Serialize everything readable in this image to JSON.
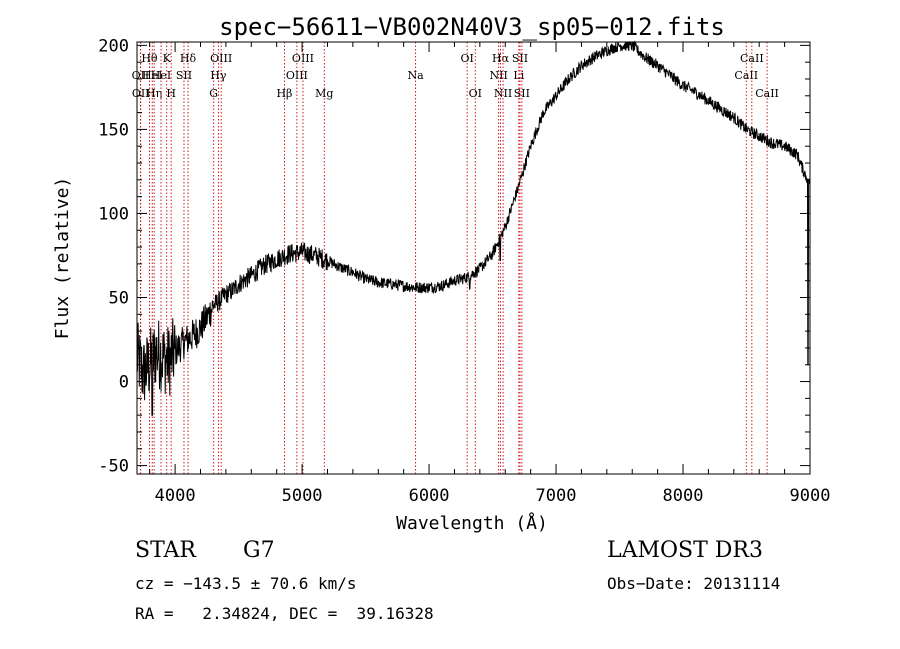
{
  "chart_data": {
    "type": "line",
    "title": "spec−56611−VB002N40V3_sp05−012.fits",
    "xlabel": "Wavelength (Å)",
    "ylabel": "Flux (relative)",
    "xlim": [
      3700,
      9000
    ],
    "ylim": [
      -55,
      202
    ],
    "x_ticks": [
      4000,
      5000,
      6000,
      7000,
      8000,
      9000
    ],
    "y_ticks": [
      -50,
      0,
      50,
      100,
      150,
      200
    ],
    "series": [
      {
        "name": "spectrum",
        "anchors": [
          [
            3700,
            15
          ],
          [
            3750,
            5
          ],
          [
            3800,
            10
          ],
          [
            3850,
            18
          ],
          [
            3900,
            15
          ],
          [
            3950,
            12
          ],
          [
            4000,
            18
          ],
          [
            4050,
            22
          ],
          [
            4100,
            25
          ],
          [
            4150,
            28
          ],
          [
            4200,
            32
          ],
          [
            4250,
            38
          ],
          [
            4300,
            45
          ],
          [
            4350,
            48
          ],
          [
            4400,
            52
          ],
          [
            4450,
            54
          ],
          [
            4500,
            58
          ],
          [
            4600,
            63
          ],
          [
            4700,
            69
          ],
          [
            4800,
            73
          ],
          [
            4900,
            76
          ],
          [
            5000,
            77
          ],
          [
            5100,
            75
          ],
          [
            5200,
            72
          ],
          [
            5300,
            68
          ],
          [
            5400,
            65
          ],
          [
            5500,
            61
          ],
          [
            5600,
            59
          ],
          [
            5700,
            58
          ],
          [
            5800,
            57
          ],
          [
            5900,
            56
          ],
          [
            6000,
            56
          ],
          [
            6100,
            57
          ],
          [
            6200,
            60
          ],
          [
            6300,
            62
          ],
          [
            6400,
            67
          ],
          [
            6500,
            76
          ],
          [
            6600,
            92
          ],
          [
            6700,
            115
          ],
          [
            6800,
            140
          ],
          [
            6900,
            160
          ],
          [
            7000,
            170
          ],
          [
            7100,
            180
          ],
          [
            7200,
            188
          ],
          [
            7300,
            193
          ],
          [
            7400,
            197
          ],
          [
            7500,
            200
          ],
          [
            7600,
            200
          ],
          [
            7700,
            193
          ],
          [
            7800,
            188
          ],
          [
            7900,
            182
          ],
          [
            8000,
            176
          ],
          [
            8100,
            172
          ],
          [
            8200,
            167
          ],
          [
            8300,
            162
          ],
          [
            8400,
            157
          ],
          [
            8500,
            150
          ],
          [
            8600,
            146
          ],
          [
            8700,
            142
          ],
          [
            8800,
            140
          ],
          [
            8900,
            135
          ],
          [
            8950,
            125
          ],
          [
            9000,
            118
          ]
        ],
        "features": [
          [
            3820,
            -20
          ],
          [
            6320,
            55
          ],
          [
            6560,
            72
          ],
          [
            8985,
            10
          ]
        ]
      }
    ],
    "lines": [
      {
        "wave": 3727,
        "label": "OII",
        "row": 2
      },
      {
        "wave": 3729,
        "label": "OII",
        "row": 3
      },
      {
        "wave": 3798,
        "label": "Hθ",
        "row": 1
      },
      {
        "wave": 3820,
        "label": "HeI",
        "row": 2
      },
      {
        "wave": 3835,
        "label": "Hη",
        "row": 3
      },
      {
        "wave": 3889,
        "label": "HeI",
        "row": 2
      },
      {
        "wave": 3934,
        "label": "K",
        "row": 1
      },
      {
        "wave": 3969,
        "label": "H",
        "row": 3
      },
      {
        "wave": 4070,
        "label": "SII",
        "row": 2
      },
      {
        "wave": 4102,
        "label": "Hδ",
        "row": 1
      },
      {
        "wave": 4304,
        "label": "G",
        "row": 3
      },
      {
        "wave": 4341,
        "label": "Hγ",
        "row": 2
      },
      {
        "wave": 4363,
        "label": "OIII",
        "row": 1
      },
      {
        "wave": 4861,
        "label": "Hβ",
        "row": 3
      },
      {
        "wave": 4959,
        "label": "OIII",
        "row": 2
      },
      {
        "wave": 5007,
        "label": "OIII",
        "row": 1
      },
      {
        "wave": 5175,
        "label": "Mg",
        "row": 3
      },
      {
        "wave": 5894,
        "label": "Na",
        "row": 2
      },
      {
        "wave": 6300,
        "label": "OI",
        "row": 1
      },
      {
        "wave": 6364,
        "label": "OI",
        "row": 3
      },
      {
        "wave": 6548,
        "label": "NII",
        "row": 2
      },
      {
        "wave": 6563,
        "label": "Hα",
        "row": 1
      },
      {
        "wave": 6583,
        "label": "NII",
        "row": 3
      },
      {
        "wave": 6707,
        "label": "Li",
        "row": 2
      },
      {
        "wave": 6716,
        "label": "SII",
        "row": 1
      },
      {
        "wave": 6731,
        "label": "SII",
        "row": 3
      },
      {
        "wave": 8498,
        "label": "CaII",
        "row": 2
      },
      {
        "wave": 8542,
        "label": "CaII",
        "row": 1
      },
      {
        "wave": 8662,
        "label": "CaII",
        "row": 3
      }
    ]
  },
  "info": {
    "object_class": "STAR",
    "subclass": "G7",
    "survey": "LAMOST DR3",
    "cz_line": "cz = −143.5 ± 70.6 km/s",
    "obs_date": "Obs−Date: 20131114",
    "radec_line": "RA =   2.34824, DEC =  39.16328"
  },
  "colors": {
    "spectrum": "#000000",
    "line_markers": "#cc0000",
    "axes": "#000000",
    "background": "#ffffff"
  }
}
